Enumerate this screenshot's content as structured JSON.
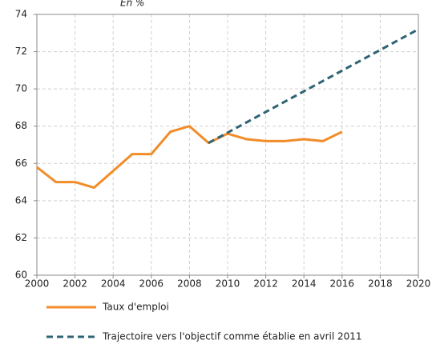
{
  "chart_data": {
    "type": "line",
    "title": "En %",
    "xlim": [
      2000,
      2020
    ],
    "xticks": [
      2000,
      2002,
      2004,
      2006,
      2008,
      2010,
      2012,
      2014,
      2016,
      2018,
      2020
    ],
    "ylim": [
      60,
      74
    ],
    "yticks": [
      60,
      62,
      64,
      66,
      68,
      70,
      72,
      74
    ],
    "grid": true,
    "series": [
      {
        "name": "Taux d'emploi",
        "color": "#f28c28",
        "dashed": false,
        "x": [
          2000,
          2001,
          2002,
          2003,
          2004,
          2005,
          2006,
          2007,
          2008,
          2009,
          2010,
          2011,
          2012,
          2013,
          2014,
          2015,
          2016
        ],
        "values": [
          65.8,
          65.0,
          65.0,
          64.7,
          65.6,
          66.5,
          66.5,
          67.7,
          68.0,
          67.1,
          67.6,
          67.3,
          67.2,
          67.2,
          67.3,
          67.2,
          67.7
        ]
      },
      {
        "name": "Trajectoire vers l'objectif comme établie en avril 2011",
        "color": "#2e6373",
        "dashed": true,
        "x": [
          2009,
          2020
        ],
        "values": [
          67.1,
          73.2
        ]
      }
    ]
  }
}
